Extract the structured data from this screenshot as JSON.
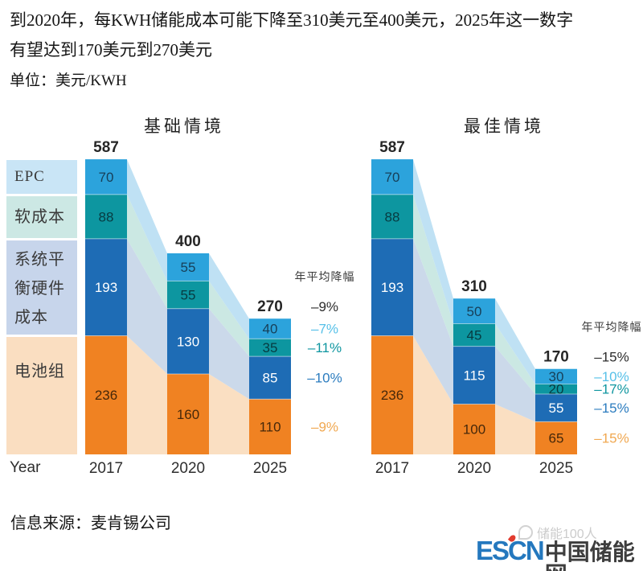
{
  "header": {
    "title_line1": "到2020年，每KWH储能成本可能下降至310美元至400美元，2025年这一数字",
    "title_line2": "有望达到170美元到270美元",
    "unit_label": "单位：美元/KWH"
  },
  "axis": {
    "year_label": "Year"
  },
  "legend": {
    "items": [
      {
        "key": "epc",
        "label": "EPC"
      },
      {
        "key": "soft",
        "label": "软成本"
      },
      {
        "key": "hardware",
        "label": "系统平\n衡硬件\n成本"
      },
      {
        "key": "battery",
        "label": "电池组"
      }
    ]
  },
  "chart_data": [
    {
      "type": "bar",
      "subtype": "stacked-waterfall",
      "title": "基础情境",
      "categories": [
        "2017",
        "2020",
        "2025"
      ],
      "totals": [
        587,
        400,
        270
      ],
      "decline_header": "年平均降幅",
      "total_decline": "–9%",
      "series": [
        {
          "key": "battery",
          "name": "电池组",
          "values": [
            236,
            160,
            110
          ],
          "color": "#F08222",
          "ribbon_color": "#FADFC2",
          "value_color": "#46280A",
          "decline": "–9%",
          "decline_color": "#F0A851"
        },
        {
          "key": "hardware",
          "name": "系统平衡硬件成本",
          "values": [
            193,
            130,
            85
          ],
          "color": "#1E6CB5",
          "ribbon_color": "#CBD9EA",
          "value_color": "#FFFFFF",
          "decline": "–10%",
          "decline_color": "#2B7CBF"
        },
        {
          "key": "soft",
          "name": "软成本",
          "values": [
            88,
            55,
            35
          ],
          "color": "#0D96A0",
          "ribbon_color": "#CBE8E3",
          "value_color": "#073B41",
          "decline": "–11%",
          "decline_color": "#0F96A0"
        },
        {
          "key": "epc",
          "name": "EPC",
          "values": [
            70,
            55,
            40
          ],
          "color": "#2CA3DC",
          "ribbon_color": "#BFE1F4",
          "value_color": "#173F58",
          "decline": "–7%",
          "decline_color": "#56C0E8"
        }
      ]
    },
    {
      "type": "bar",
      "subtype": "stacked-waterfall",
      "title": "最佳情境",
      "categories": [
        "2017",
        "2020",
        "2025"
      ],
      "totals": [
        587,
        310,
        170
      ],
      "decline_header": "年平均降幅",
      "total_decline": "–15%",
      "series": [
        {
          "key": "battery",
          "name": "电池组",
          "values": [
            236,
            100,
            65
          ],
          "color": "#F08222",
          "ribbon_color": "#FADFC2",
          "value_color": "#46280A",
          "decline": "–15%",
          "decline_color": "#F0A851"
        },
        {
          "key": "hardware",
          "name": "系统平衡硬件成本",
          "values": [
            193,
            115,
            55
          ],
          "color": "#1E6CB5",
          "ribbon_color": "#CBD9EA",
          "value_color": "#FFFFFF",
          "decline": "–15%",
          "decline_color": "#2B7CBF"
        },
        {
          "key": "soft",
          "name": "软成本",
          "values": [
            88,
            45,
            20
          ],
          "color": "#0D96A0",
          "ribbon_color": "#CBE8E3",
          "value_color": "#073B41",
          "decline": "–17%",
          "decline_color": "#0F96A0"
        },
        {
          "key": "epc",
          "name": "EPC",
          "values": [
            70,
            50,
            30
          ],
          "color": "#2CA3DC",
          "ribbon_color": "#BFE1F4",
          "value_color": "#173F58",
          "decline": "–10%",
          "decline_color": "#56C0E8"
        }
      ]
    }
  ],
  "source": "信息来源：麦肯锡公司",
  "footer_logo": {
    "brand_latin": "ESCN",
    "brand_cn": "中国储能网",
    "watermark": "储能100人"
  }
}
